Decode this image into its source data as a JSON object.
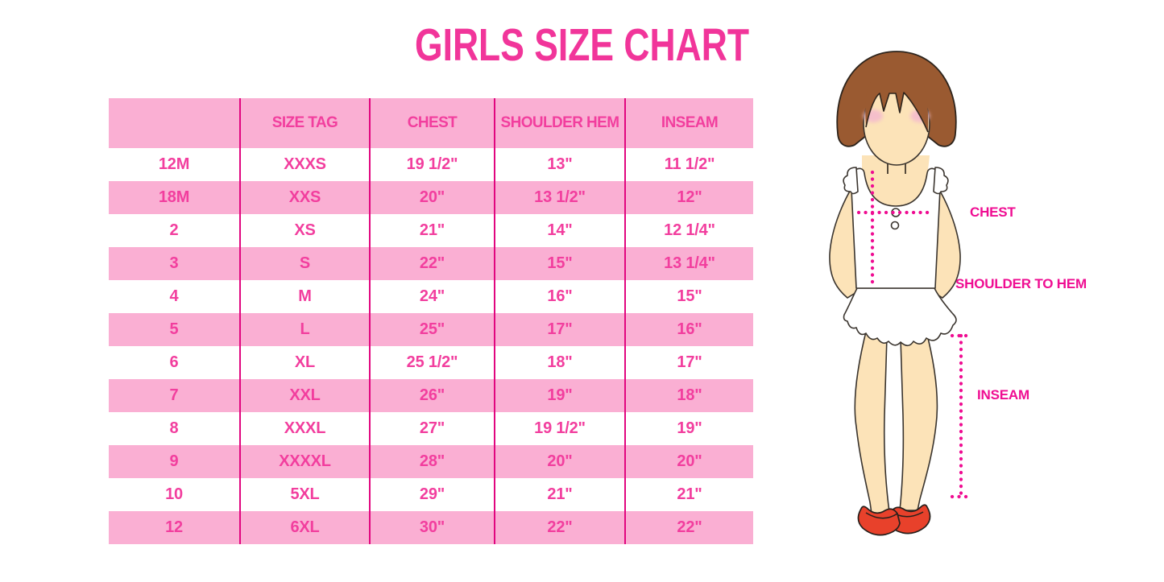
{
  "title": "GIRLS SIZE CHART",
  "chart_data": {
    "type": "table",
    "title": "GIRLS SIZE CHART",
    "columns": [
      "",
      "SIZE TAG",
      "CHEST",
      "SHOULDER HEM",
      "INSEAM"
    ],
    "rows": [
      [
        "12M",
        "XXXS",
        "19 1/2\"",
        "13\"",
        "11 1/2\""
      ],
      [
        "18M",
        "XXS",
        "20\"",
        "13 1/2\"",
        "12\""
      ],
      [
        "2",
        "XS",
        "21\"",
        "14\"",
        "12 1/4\""
      ],
      [
        "3",
        "S",
        "22\"",
        "15\"",
        "13 1/4\""
      ],
      [
        "4",
        "M",
        "24\"",
        "16\"",
        "15\""
      ],
      [
        "5",
        "L",
        "25\"",
        "17\"",
        "16\""
      ],
      [
        "6",
        "XL",
        "25 1/2\"",
        "18\"",
        "17\""
      ],
      [
        "7",
        "XXL",
        "26\"",
        "19\"",
        "18\""
      ],
      [
        "8",
        "XXXL",
        "27\"",
        "19 1/2\"",
        "19\""
      ],
      [
        "9",
        "XXXXL",
        "28\"",
        "20\"",
        "20\""
      ],
      [
        "10",
        "5XL",
        "29\"",
        "21\"",
        "21\""
      ],
      [
        "12",
        "6XL",
        "30\"",
        "22\"",
        "22\""
      ]
    ],
    "row_striping": "header pink, then alternating white/pink starting with white"
  },
  "figure": {
    "illustration": "girl-measurement-figure",
    "labels": {
      "chest": "CHEST",
      "shoulder_to_hem": "SHOULDER TO HEM",
      "inseam": "INSEAM"
    }
  },
  "colors": {
    "title_pink": "#F1359A",
    "table_text_pink": "#F23E9E",
    "row_band_pink": "#FAAFD3",
    "divider_magenta": "#E1067F",
    "measure_line_magenta": "#EF0D92",
    "hair_brown": "#9A5A31",
    "skin_peach": "#FCE3B8",
    "blush_pink": "#F5BFCB",
    "shoe_red": "#E8412B",
    "background": "#FFFFFF"
  }
}
